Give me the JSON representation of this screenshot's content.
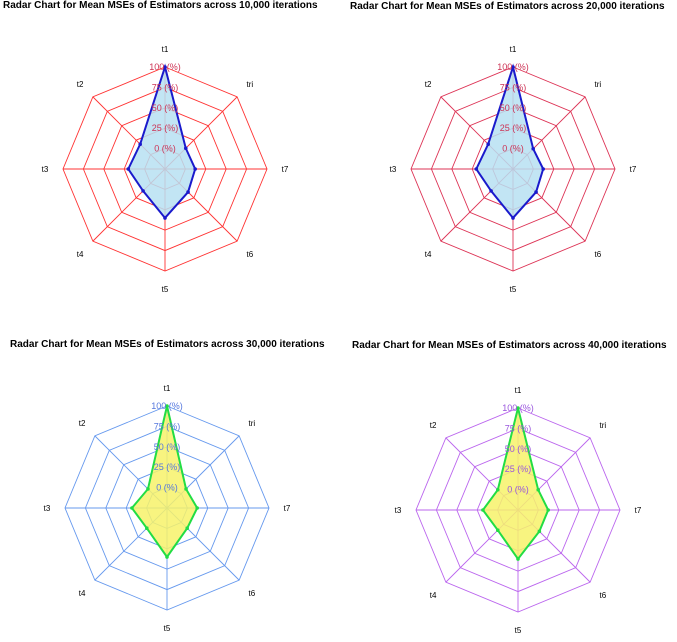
{
  "chart_data": [
    {
      "type": "radar",
      "title": "Radar Chart for Mean MSEs of Estimators across 10,000 iterations",
      "axes": [
        "t1",
        "tri",
        "t7",
        "t6",
        "t5",
        "t4",
        "t3",
        "t2"
      ],
      "grid_labels": [
        "0 (%)",
        "25 (%)",
        "50 (%)",
        "75 (%)",
        "100 (%)"
      ],
      "range": [
        0,
        100
      ],
      "series": [
        {
          "values": [
            100,
            11,
            12,
            15,
            35,
            13,
            20,
            18
          ]
        }
      ],
      "colors": {
        "grid": "#ff3333",
        "label": "#cc3355",
        "fill": "#b7e0f2",
        "line": "#1a1acc"
      }
    },
    {
      "type": "radar",
      "title": "Radar Chart for Mean MSEs of Estimators across 20,000 iterations",
      "axes": [
        "t1",
        "tri",
        "t7",
        "t6",
        "t5",
        "t4",
        "t3",
        "t2"
      ],
      "grid_labels": [
        "0 (%)",
        "25 (%)",
        "50 (%)",
        "75 (%)",
        "100 (%)"
      ],
      "range": [
        0,
        100
      ],
      "series": [
        {
          "values": [
            100,
            10,
            12,
            15,
            35,
            13,
            20,
            18
          ]
        }
      ],
      "colors": {
        "grid": "#dd3355",
        "label": "#cc3355",
        "fill": "#b7e0f2",
        "line": "#1a1acc"
      }
    },
    {
      "type": "radar",
      "title": "Radar Chart for Mean MSEs of Estimators across 30,000 iterations",
      "axes": [
        "t1",
        "tri",
        "t7",
        "t6",
        "t5",
        "t4",
        "t3",
        "t2"
      ],
      "grid_labels": [
        "0 (%)",
        "25 (%)",
        "50 (%)",
        "75 (%)",
        "100 (%)"
      ],
      "range": [
        0,
        100
      ],
      "series": [
        {
          "values": [
            100,
            8,
            12,
            10,
            35,
            10,
            18,
            8
          ]
        }
      ],
      "colors": {
        "grid": "#6699ee",
        "label": "#5577dd",
        "fill": "#f7f26a",
        "line": "#22dd44"
      }
    },
    {
      "type": "radar",
      "title": "Radar Chart for Mean MSEs of Estimators across 40,000 iterations",
      "axes": [
        "t1",
        "tri",
        "t7",
        "t6",
        "t5",
        "t4",
        "t3",
        "t2"
      ],
      "grid_labels": [
        "0 (%)",
        "25 (%)",
        "50 (%)",
        "75 (%)",
        "100 (%)"
      ],
      "range": [
        0,
        100
      ],
      "series": [
        {
          "values": [
            100,
            10,
            12,
            12,
            35,
            10,
            18,
            10
          ]
        }
      ],
      "colors": {
        "grid": "#bb66ee",
        "label": "#9955dd",
        "fill": "#f7f26a",
        "line": "#22dd44"
      }
    }
  ]
}
